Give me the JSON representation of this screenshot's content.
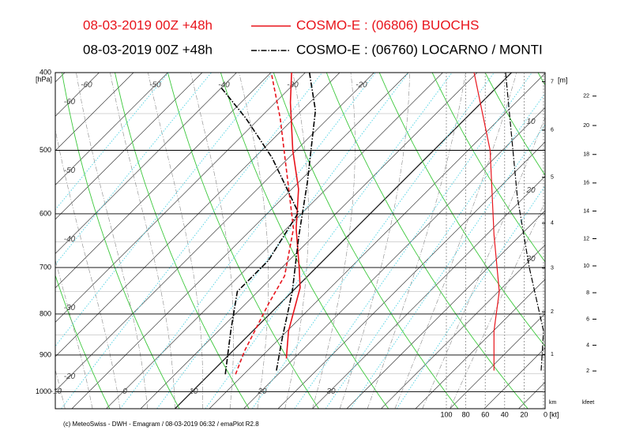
{
  "chart_data": {
    "type": "emagram",
    "stations": [
      {
        "run": "08-03-2019  00Z +48h",
        "name": "COSMO-E : (06806)  BUOCHS",
        "color": "#e8141c",
        "dash": "none",
        "temperature": {
          "p": [
            909,
            840,
            742,
            700,
            626,
            559,
            500,
            436,
            400
          ],
          "t": [
            8.9,
            5.2,
            0.6,
            -2.5,
            -8.6,
            -14.0,
            -20.5,
            -27.8,
            -32.0
          ]
        },
        "dewpoint": {
          "p": [
            951,
            889,
            776,
            717,
            626,
            456,
            403
          ],
          "t": [
            3.8,
            1.7,
            -1.7,
            -3.4,
            -9.0,
            -27.0,
            -34.5
          ]
        },
        "wind_speed": {
          "p": [
            941,
            840,
            750,
            637,
            500,
            400
          ],
          "v": [
            51,
            51,
            45.5,
            51,
            55,
            71.5
          ]
        }
      },
      {
        "run": "08-03-2019  00Z +48h",
        "name": "COSMO-E : (06760)  LOCARNO / MONTI",
        "color": "#000000",
        "dash": "7,2,1.5,2",
        "temperature": {
          "p": [
            941,
            859,
            750,
            640,
            547,
            446,
            400
          ],
          "t": [
            9.2,
            5.4,
            0.0,
            -7.1,
            -13.8,
            -23.0,
            -29.4
          ]
        },
        "dewpoint": {
          "p": [
            951,
            840,
            750,
            686,
            598,
            511,
            456,
            417
          ],
          "t": [
            2.3,
            -3.2,
            -8.0,
            -8.0,
            -10.6,
            -22.4,
            -32.0,
            -40.2
          ]
        },
        "wind_speed": {
          "p": [
            941,
            840,
            700,
            571,
            400
          ],
          "v": [
            2.4,
            0,
            14.6,
            27,
            39
          ]
        }
      }
    ],
    "y_unit": "[hPa]",
    "ylim": [
      400,
      1050
    ],
    "yticks": [
      400,
      500,
      600,
      700,
      800,
      900,
      1000
    ],
    "log_scale": true,
    "isotherm_labels": {
      "top": [
        -60,
        -50,
        -40,
        -30,
        -20
      ],
      "left": [
        -60,
        -50,
        -40,
        -30,
        -20
      ],
      "bottom": [
        -10,
        0,
        10,
        20,
        30
      ],
      "right": [
        10,
        20,
        30
      ]
    },
    "wind_xlim": [
      0,
      100
    ],
    "wind_ticks": [
      100,
      80,
      60,
      40,
      20,
      {
        "value": 0,
        "label": "0 [kt]"
      }
    ],
    "km_unit": "[m]",
    "km_label": "km",
    "km_ticks": [
      1,
      2,
      3,
      4,
      5,
      6,
      7
    ],
    "kfeet_label": "kfeet",
    "kfeet_ticks": [
      2,
      4,
      6,
      8,
      10,
      12,
      14,
      16,
      18,
      20,
      22
    ],
    "footer": "(c) MeteoSwiss - DWH - Emagram / 08-03-2019  06:32 / emaPlot R2.8"
  }
}
